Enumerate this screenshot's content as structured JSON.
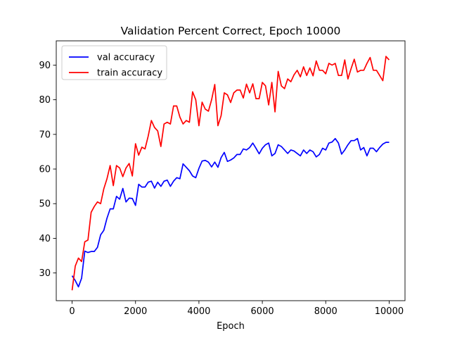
{
  "chart_data": {
    "type": "line",
    "title": "Validation Percent Correct, Epoch 10000",
    "xlabel": "Epoch",
    "ylabel": "",
    "xlim": [
      -500,
      10500
    ],
    "ylim": [
      22,
      97
    ],
    "xticks": [
      0,
      2000,
      4000,
      6000,
      8000,
      10000
    ],
    "xtick_labels": [
      "0",
      "2000",
      "4000",
      "6000",
      "8000",
      "10000"
    ],
    "yticks": [
      30,
      40,
      50,
      60,
      70,
      80,
      90
    ],
    "ytick_labels": [
      "30",
      "40",
      "50",
      "60",
      "70",
      "80",
      "90"
    ],
    "grid": false,
    "legend_position": "upper-left",
    "x": [
      0,
      100,
      200,
      300,
      400,
      500,
      600,
      700,
      800,
      900,
      1000,
      1100,
      1200,
      1300,
      1400,
      1500,
      1600,
      1700,
      1800,
      1900,
      2000,
      2100,
      2200,
      2300,
      2400,
      2500,
      2600,
      2700,
      2800,
      2900,
      3000,
      3100,
      3200,
      3300,
      3400,
      3500,
      3600,
      3700,
      3800,
      3900,
      4000,
      4100,
      4200,
      4300,
      4400,
      4500,
      4600,
      4700,
      4800,
      4900,
      5000,
      5100,
      5200,
      5300,
      5400,
      5500,
      5600,
      5700,
      5800,
      5900,
      6000,
      6100,
      6200,
      6300,
      6400,
      6500,
      6600,
      6700,
      6800,
      6900,
      7000,
      7100,
      7200,
      7300,
      7400,
      7500,
      7600,
      7700,
      7800,
      7900,
      8000,
      8100,
      8200,
      8300,
      8400,
      8500,
      8600,
      8700,
      8800,
      8900,
      9000,
      9100,
      9200,
      9300,
      9400,
      9500,
      9600,
      9700,
      9800,
      9900,
      10000
    ],
    "series": [
      {
        "name": "val accuracy",
        "color": "#0000ff",
        "values": [
          29.2,
          27.8,
          26.0,
          28.5,
          36.3,
          35.9,
          36.2,
          36.2,
          37.4,
          41.0,
          42.3,
          45.8,
          48.5,
          48.5,
          52.1,
          51.3,
          54.4,
          50.5,
          51.6,
          51.5,
          49.5,
          55.6,
          54.8,
          54.8,
          56.2,
          56.5,
          54.5,
          56.2,
          55.0,
          56.5,
          56.8,
          55.0,
          56.5,
          57.5,
          57.2,
          61.5,
          60.5,
          59.5,
          58.0,
          57.5,
          60.2,
          62.3,
          62.5,
          62.0,
          60.6,
          62.0,
          60.5,
          63.3,
          64.8,
          62.2,
          62.6,
          63.2,
          64.2,
          64.2,
          65.8,
          65.5,
          66.2,
          67.5,
          66.0,
          64.4,
          66.0,
          67.0,
          67.5,
          63.8,
          64.5,
          67.0,
          66.5,
          65.5,
          64.5,
          65.5,
          65.2,
          64.5,
          63.8,
          65.5,
          64.5,
          65.5,
          65.0,
          63.5,
          64.2,
          66.0,
          65.5,
          67.5,
          67.8,
          68.8,
          67.5,
          64.3,
          65.5,
          67.0,
          68.2,
          68.2,
          68.8,
          65.5,
          66.2,
          63.8,
          66.0,
          66.0,
          65.0,
          66.2,
          67.2,
          67.7,
          67.7
        ]
      },
      {
        "name": "train accuracy",
        "color": "#ff0000",
        "values": [
          25.0,
          32.0,
          34.3,
          33.3,
          39.0,
          39.5,
          47.5,
          49.2,
          50.5,
          50.0,
          54.3,
          57.2,
          61.0,
          55.2,
          61.0,
          60.3,
          57.8,
          60.3,
          61.6,
          58.0,
          67.3,
          64.0,
          66.3,
          65.8,
          69.5,
          74.0,
          72.0,
          71.0,
          66.5,
          73.0,
          73.5,
          73.0,
          78.2,
          78.2,
          75.0,
          73.0,
          74.0,
          73.5,
          82.3,
          80.0,
          72.5,
          79.3,
          77.3,
          76.7,
          80.0,
          84.4,
          72.5,
          75.4,
          82.0,
          81.4,
          79.2,
          82.0,
          82.8,
          82.8,
          80.5,
          84.5,
          82.0,
          84.6,
          80.3,
          80.3,
          85.0,
          84.0,
          78.5,
          85.0,
          76.5,
          88.2,
          84.0,
          83.2,
          86.0,
          85.2,
          87.2,
          88.5,
          86.6,
          89.5,
          87.0,
          89.2,
          86.9,
          91.2,
          88.5,
          88.5,
          87.5,
          90.5,
          90.0,
          90.5,
          87.0,
          87.0,
          91.5,
          86.0,
          89.0,
          91.7,
          88.0,
          88.5,
          88.5,
          90.5,
          92.2,
          88.5,
          88.5,
          87.0,
          85.5,
          92.5,
          91.5
        ]
      }
    ]
  }
}
